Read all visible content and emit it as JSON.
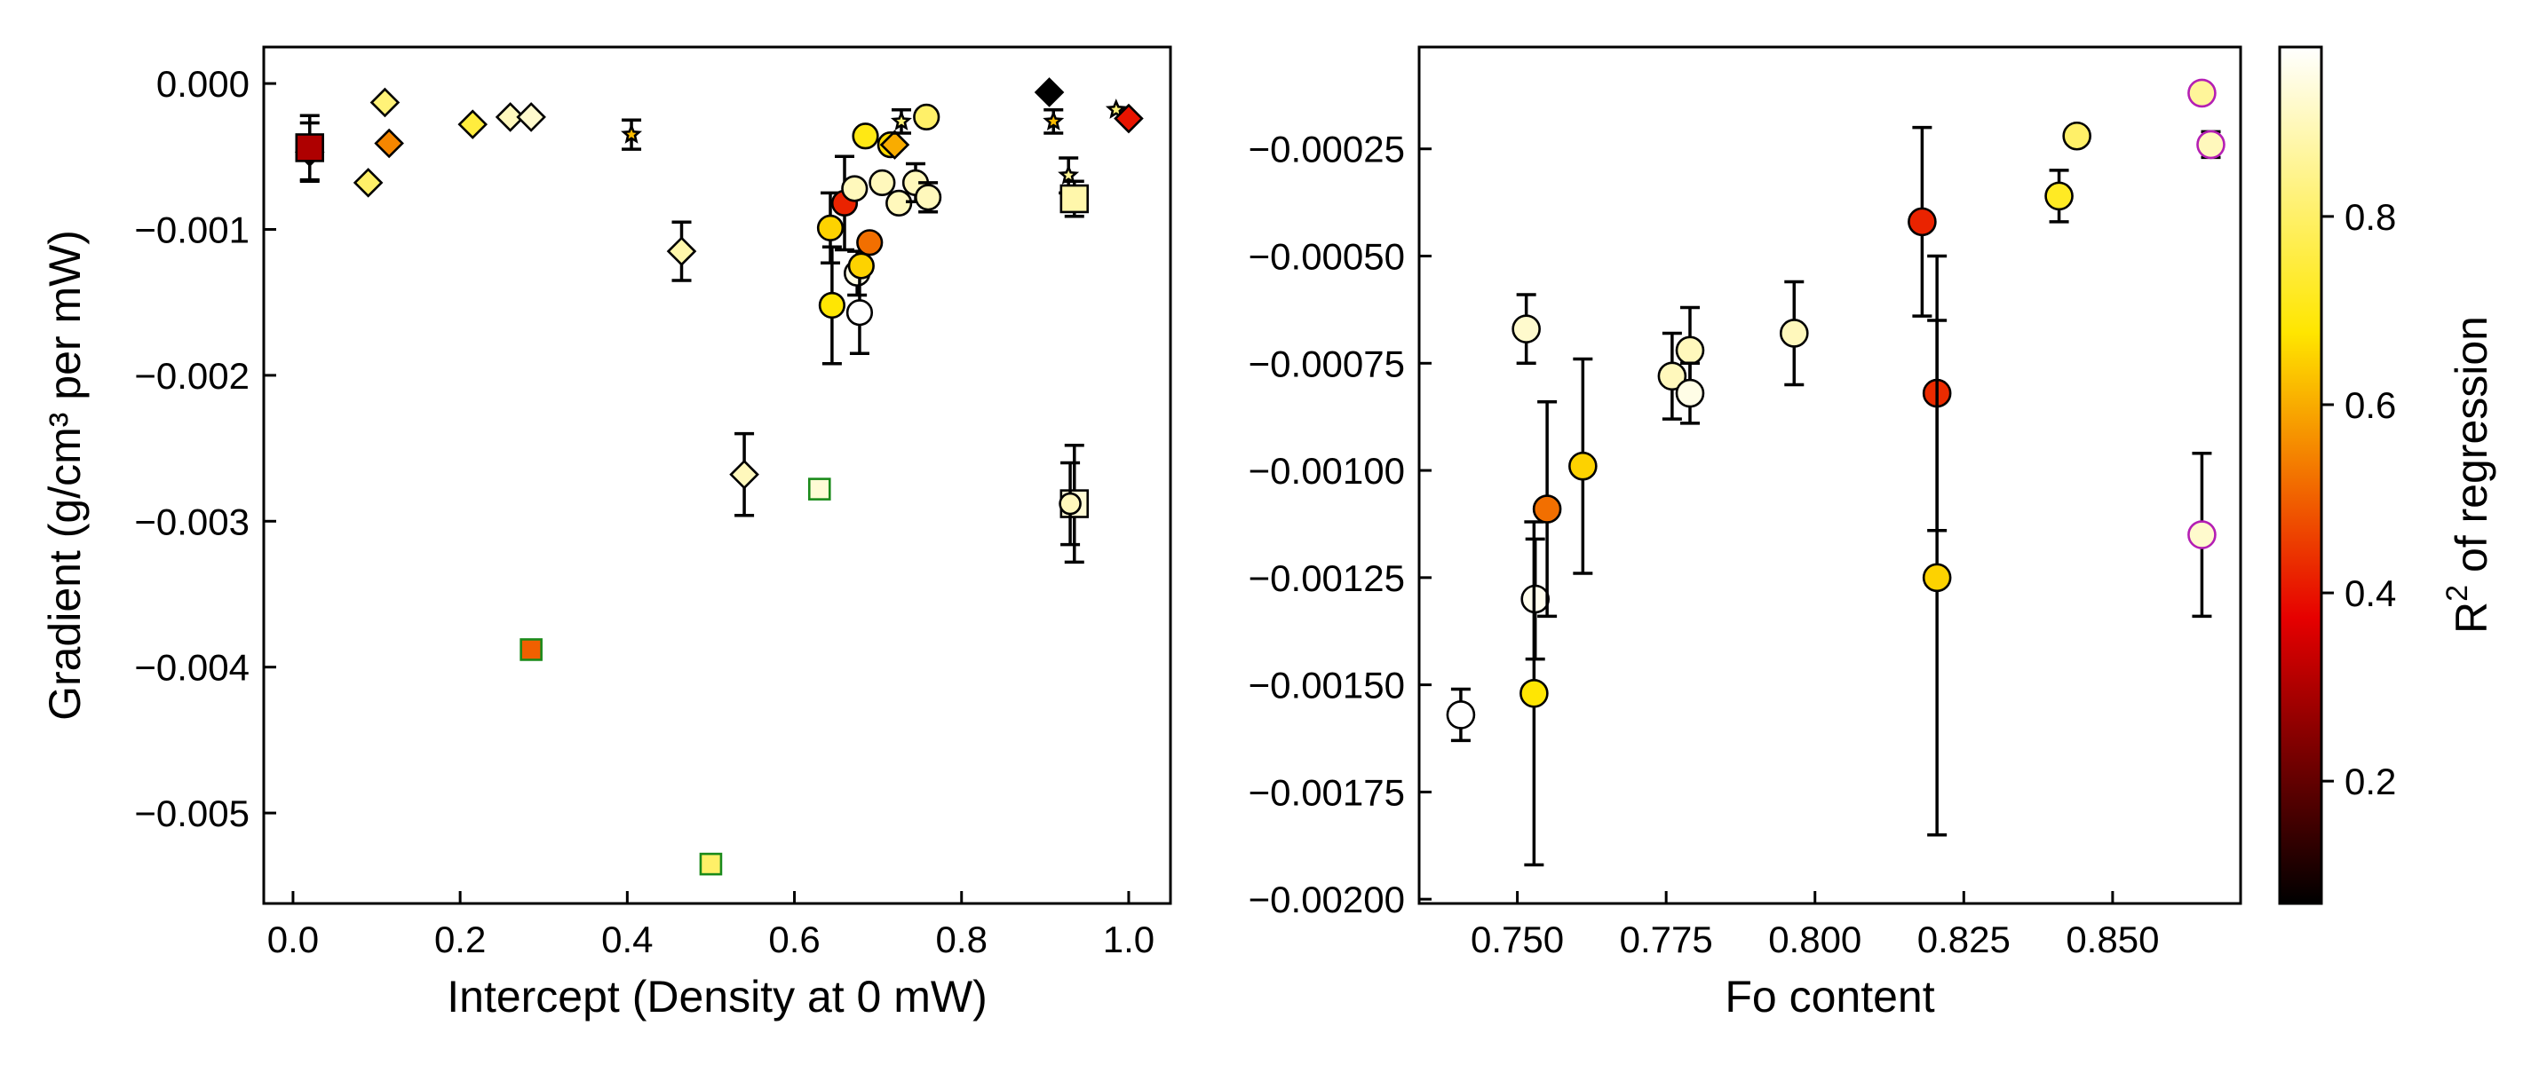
{
  "colormap": {
    "name": "hot",
    "stops": [
      "#000000",
      "#e60000",
      "#ffe600",
      "#ffffff"
    ],
    "range": [
      0.07,
      0.98
    ]
  },
  "chart_data": [
    {
      "type": "scatter",
      "title": "",
      "xlabel": "Intercept (Density at 0 mW)",
      "ylabel": "Gradient (g/cm³ per mW)",
      "xlim": [
        -0.035,
        1.05
      ],
      "ylim": [
        -0.00562,
        0.00025
      ],
      "xticks": [
        0.0,
        0.2,
        0.4,
        0.6,
        0.8,
        1.0
      ],
      "xtick_labels": [
        "0.0",
        "0.2",
        "0.4",
        "0.6",
        "0.8",
        "1.0"
      ],
      "yticks": [
        0.0,
        -0.001,
        -0.002,
        -0.003,
        -0.004,
        -0.005
      ],
      "ytick_labels": [
        "0.000",
        "−0.001",
        "−0.002",
        "−0.003",
        "−0.004",
        "−0.005"
      ],
      "grid": false,
      "legend": "none",
      "points": [
        {
          "x": 0.02,
          "y": -0.00047,
          "err": 0.0002,
          "shape": "diamond",
          "c": 0.55,
          "edge": "#000000",
          "size": 13
        },
        {
          "x": 0.02,
          "y": -0.00044,
          "err": 0.00022,
          "shape": "square",
          "c": 0.3,
          "edge": "#000000",
          "size": 13
        },
        {
          "x": 0.09,
          "y": -0.00068,
          "err": 0.0,
          "shape": "diamond",
          "c": 0.8,
          "edge": "#000000",
          "size": 13
        },
        {
          "x": 0.11,
          "y": -0.00013,
          "err": 0.0,
          "shape": "diamond",
          "c": 0.82,
          "edge": "#000000",
          "size": 13
        },
        {
          "x": 0.115,
          "y": -0.00041,
          "err": 0.0,
          "shape": "diamond",
          "c": 0.55,
          "edge": "#000000",
          "size": 13
        },
        {
          "x": 0.215,
          "y": -0.00028,
          "err": 0.0,
          "shape": "diamond",
          "c": 0.75,
          "edge": "#000000",
          "size": 13
        },
        {
          "x": 0.26,
          "y": -0.00023,
          "err": 0.0,
          "shape": "diamond",
          "c": 0.9,
          "edge": "#000000",
          "size": 13
        },
        {
          "x": 0.285,
          "y": -0.00023,
          "err": 0.0,
          "shape": "diamond",
          "c": 0.92,
          "edge": "#000000",
          "size": 13
        },
        {
          "x": 0.405,
          "y": -0.00035,
          "err": 0.0001,
          "shape": "star",
          "c": 0.62,
          "edge": "#000000",
          "size": 8
        },
        {
          "x": 0.465,
          "y": -0.00115,
          "err": 0.0002,
          "shape": "diamond",
          "c": 0.88,
          "edge": "#000000",
          "size": 13
        },
        {
          "x": 0.54,
          "y": -0.00268,
          "err": 0.00028,
          "shape": "diamond",
          "c": 0.9,
          "edge": "#000000",
          "size": 13
        },
        {
          "x": 0.285,
          "y": -0.00388,
          "err": 0.0,
          "shape": "square",
          "c": 0.5,
          "edge": "#1a8a1a",
          "size": 10
        },
        {
          "x": 0.5,
          "y": -0.00535,
          "err": 0.0,
          "shape": "square",
          "c": 0.8,
          "edge": "#1a8a1a",
          "size": 10
        },
        {
          "x": 0.63,
          "y": -0.00278,
          "err": 0.0,
          "shape": "square",
          "c": 0.93,
          "edge": "#1a8a1a",
          "size": 10
        },
        {
          "x": 0.643,
          "y": -0.00099,
          "err": 0.00024,
          "shape": "circle",
          "c": 0.65,
          "edge": "#000000",
          "size": 12
        },
        {
          "x": 0.645,
          "y": -0.00152,
          "err": 0.0004,
          "shape": "circle",
          "c": 0.68,
          "edge": "#000000",
          "size": 12
        },
        {
          "x": 0.66,
          "y": -0.00082,
          "err": 0.00032,
          "shape": "circle",
          "c": 0.42,
          "edge": "#000000",
          "size": 12
        },
        {
          "x": 0.672,
          "y": -0.00072,
          "err": 0.0,
          "shape": "circle",
          "c": 0.9,
          "edge": "#000000",
          "size": 12
        },
        {
          "x": 0.675,
          "y": -0.0013,
          "err": 0.00015,
          "shape": "circle",
          "c": 0.95,
          "edge": "#000000",
          "size": 12
        },
        {
          "x": 0.678,
          "y": -0.00157,
          "err": 0.00028,
          "shape": "circle",
          "c": 0.98,
          "edge": "#000000",
          "size": 12
        },
        {
          "x": 0.68,
          "y": -0.00125,
          "err": 0.0,
          "shape": "circle",
          "c": 0.65,
          "edge": "#000000",
          "size": 12
        },
        {
          "x": 0.685,
          "y": -0.00036,
          "err": 0.0,
          "shape": "circle",
          "c": 0.7,
          "edge": "#000000",
          "size": 12
        },
        {
          "x": 0.69,
          "y": -0.00109,
          "err": 0.0,
          "shape": "circle",
          "c": 0.52,
          "edge": "#000000",
          "size": 12
        },
        {
          "x": 0.705,
          "y": -0.00068,
          "err": 0.0,
          "shape": "circle",
          "c": 0.9,
          "edge": "#000000",
          "size": 12
        },
        {
          "x": 0.715,
          "y": -0.00042,
          "err": 0.0,
          "shape": "circle",
          "c": 0.66,
          "edge": "#000000",
          "size": 12
        },
        {
          "x": 0.72,
          "y": -0.00042,
          "err": 0.0,
          "shape": "diamond",
          "c": 0.6,
          "edge": "#000000",
          "size": 13
        },
        {
          "x": 0.725,
          "y": -0.00082,
          "err": 0.0,
          "shape": "circle",
          "c": 0.9,
          "edge": "#000000",
          "size": 12
        },
        {
          "x": 0.728,
          "y": -0.00026,
          "err": 8e-05,
          "shape": "star",
          "c": 0.82,
          "edge": "#000000",
          "size": 8
        },
        {
          "x": 0.745,
          "y": -0.00068,
          "err": 0.00013,
          "shape": "circle",
          "c": 0.9,
          "edge": "#000000",
          "size": 12
        },
        {
          "x": 0.76,
          "y": -0.00078,
          "err": 0.0001,
          "shape": "circle",
          "c": 0.9,
          "edge": "#000000",
          "size": 12
        },
        {
          "x": 0.758,
          "y": -0.00023,
          "err": 0.0,
          "shape": "circle",
          "c": 0.8,
          "edge": "#000000",
          "size": 12
        },
        {
          "x": 0.905,
          "y": -6e-05,
          "err": 0.0,
          "shape": "diamond",
          "c": 0.05,
          "edge": "#000000",
          "size": 13
        },
        {
          "x": 0.91,
          "y": -0.00026,
          "err": 8e-05,
          "shape": "star",
          "c": 0.62,
          "edge": "#000000",
          "size": 8
        },
        {
          "x": 0.928,
          "y": -0.00063,
          "err": 0.00012,
          "shape": "star",
          "c": 0.85,
          "edge": "#000000",
          "size": 8
        },
        {
          "x": 0.935,
          "y": -0.00079,
          "err": 0.00012,
          "shape": "square",
          "c": 0.88,
          "edge": "#000000",
          "size": 13
        },
        {
          "x": 0.935,
          "y": -0.00288,
          "err": 0.0004,
          "shape": "square",
          "c": 0.93,
          "edge": "#000000",
          "size": 13
        },
        {
          "x": 0.93,
          "y": -0.00288,
          "err": 0.00028,
          "shape": "circle",
          "c": 0.9,
          "edge": "#000000",
          "size": 10
        },
        {
          "x": 0.985,
          "y": -0.00018,
          "err": 0.0,
          "shape": "star",
          "c": 0.82,
          "edge": "#000000",
          "size": 8
        },
        {
          "x": 1.0,
          "y": -0.00024,
          "err": 0.0,
          "shape": "diamond",
          "c": 0.4,
          "edge": "#000000",
          "size": 13
        }
      ]
    },
    {
      "type": "scatter",
      "title": "",
      "xlabel": "Fo content",
      "ylabel": "",
      "xlim": [
        0.7335,
        0.8715
      ],
      "ylim": [
        -0.00201,
        -1.25e-05
      ],
      "xticks": [
        0.75,
        0.775,
        0.8,
        0.825,
        0.85
      ],
      "xtick_labels": [
        "0.750",
        "0.775",
        "0.800",
        "0.825",
        "0.850"
      ],
      "yticks": [
        -0.00025,
        -0.0005,
        -0.00075,
        -0.001,
        -0.00125,
        -0.0015,
        -0.00175,
        -0.002
      ],
      "ytick_labels": [
        "−0.00025",
        "−0.00050",
        "−0.00075",
        "−0.00100",
        "−0.00125",
        "−0.00150",
        "−0.00175",
        "−0.00200"
      ],
      "grid": false,
      "legend": "none",
      "points": [
        {
          "x": 0.7405,
          "y": -0.00157,
          "err": 6e-05,
          "c": 0.98,
          "edge": "#000000"
        },
        {
          "x": 0.7515,
          "y": -0.00067,
          "err": 8e-05,
          "c": 0.92,
          "edge": "#000000"
        },
        {
          "x": 0.753,
          "y": -0.0013,
          "err": 0.00014,
          "c": 0.96,
          "edge": "#000000"
        },
        {
          "x": 0.7528,
          "y": -0.00152,
          "err": 0.0004,
          "c": 0.68,
          "edge": "#000000"
        },
        {
          "x": 0.755,
          "y": -0.00109,
          "err": 0.00025,
          "c": 0.52,
          "edge": "#000000"
        },
        {
          "x": 0.761,
          "y": -0.00099,
          "err": 0.00025,
          "c": 0.65,
          "edge": "#000000"
        },
        {
          "x": 0.776,
          "y": -0.00078,
          "err": 0.0001,
          "c": 0.9,
          "edge": "#000000"
        },
        {
          "x": 0.779,
          "y": -0.00072,
          "err": 0.0001,
          "c": 0.9,
          "edge": "#000000"
        },
        {
          "x": 0.779,
          "y": -0.00082,
          "err": 7e-05,
          "c": 0.95,
          "edge": "#000000"
        },
        {
          "x": 0.7965,
          "y": -0.00068,
          "err": 0.00012,
          "c": 0.9,
          "edge": "#000000"
        },
        {
          "x": 0.818,
          "y": -0.00042,
          "err": 0.00022,
          "c": 0.42,
          "edge": "#000000"
        },
        {
          "x": 0.8205,
          "y": -0.00082,
          "err": 0.00032,
          "c": 0.43,
          "edge": "#000000"
        },
        {
          "x": 0.8205,
          "y": -0.00125,
          "err": 0.0006,
          "c": 0.65,
          "edge": "#000000"
        },
        {
          "x": 0.841,
          "y": -0.00036,
          "err": 6e-05,
          "c": 0.72,
          "edge": "#000000"
        },
        {
          "x": 0.844,
          "y": -0.00022,
          "err": 2e-05,
          "c": 0.8,
          "edge": "#000000"
        },
        {
          "x": 0.865,
          "y": -0.00012,
          "err": 0.0,
          "c": 0.86,
          "edge": "#b41fb4"
        },
        {
          "x": 0.8665,
          "y": -0.00024,
          "err": 3e-05,
          "c": 0.9,
          "edge": "#b41fb4"
        },
        {
          "x": 0.865,
          "y": -0.00115,
          "err": 0.00019,
          "c": 0.92,
          "edge": "#b41fb4"
        }
      ]
    }
  ],
  "colorbar": {
    "label": "R",
    "label_superscript": "2",
    "label_suffix": " of regression",
    "ticks": [
      0.2,
      0.4,
      0.6,
      0.8
    ],
    "tick_labels": [
      "0.2",
      "0.4",
      "0.6",
      "0.8"
    ]
  }
}
